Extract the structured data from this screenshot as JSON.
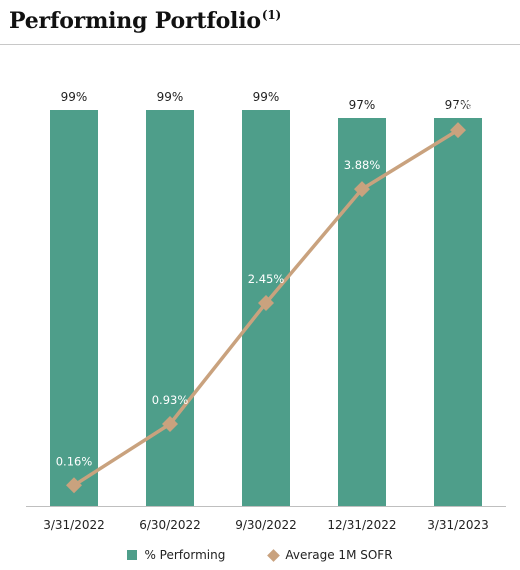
{
  "title": "Performing Portfolio",
  "title_note": "(1)",
  "colors": {
    "bar": "#4e9e8a",
    "line": "#c9a27e",
    "text": "#222222"
  },
  "chart_data": {
    "type": "bar",
    "categories": [
      "3/31/2022",
      "6/30/2022",
      "9/30/2022",
      "12/31/2022",
      "3/31/2023"
    ],
    "series": [
      {
        "name": "% Performing",
        "type": "bar",
        "values": [
          99,
          99,
          99,
          97,
          97
        ],
        "labels": [
          "99%",
          "99%",
          "99%",
          "97%",
          "97%"
        ]
      },
      {
        "name": "Average 1M SOFR",
        "type": "line",
        "marker": "diamond",
        "values": [
          0.16,
          0.93,
          2.45,
          3.88,
          4.62
        ],
        "labels": [
          "0.16%",
          "0.93%",
          "2.45%",
          "3.88%",
          "4.62%"
        ]
      }
    ],
    "bar_axis_range": [
      0,
      100
    ],
    "line_axis_range": [
      -0.1,
      5.25
    ],
    "axes_visible": false,
    "grid": false,
    "legend_position": "bottom"
  },
  "legend": {
    "bar_label": "% Performing",
    "line_label": "Average 1M SOFR"
  }
}
